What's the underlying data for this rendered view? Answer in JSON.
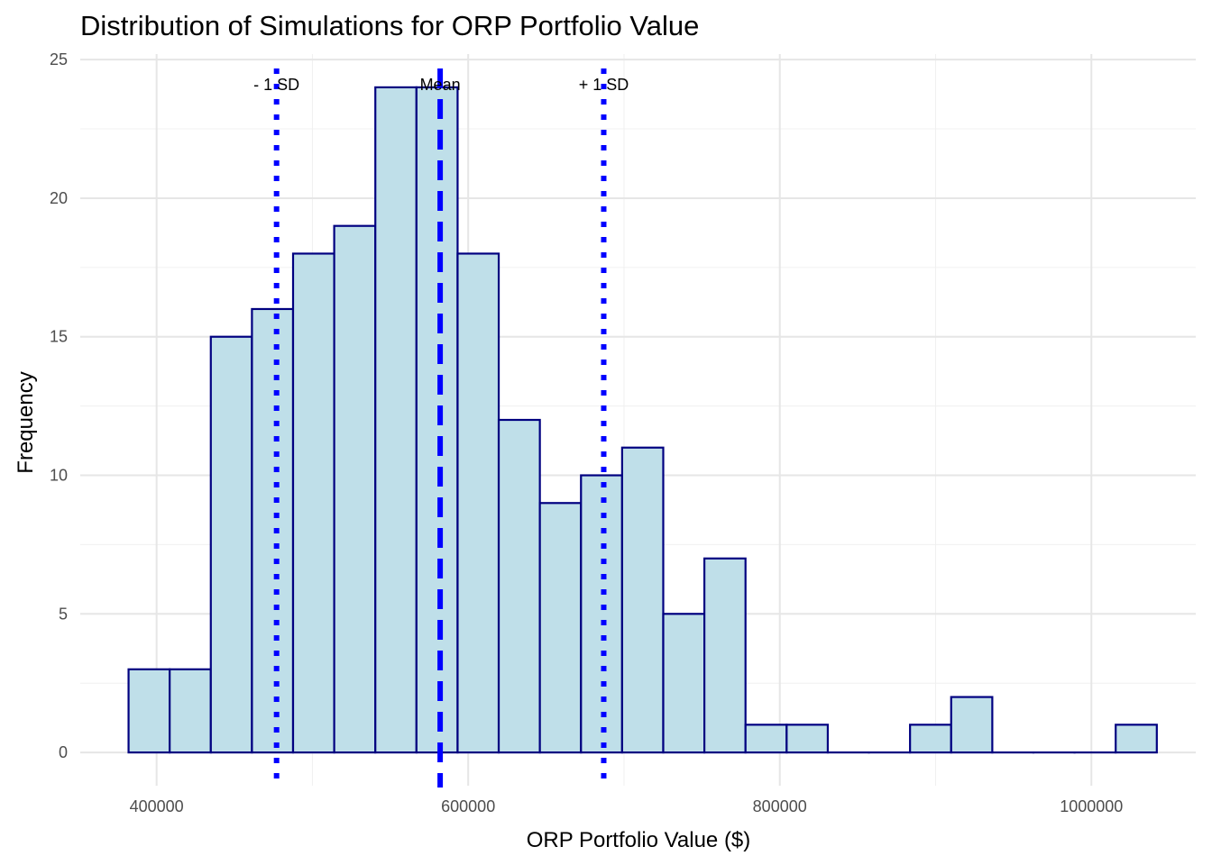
{
  "chart_data": {
    "type": "bar",
    "title": "Distribution of Simulations for ORP Portfolio Value",
    "xlabel": "ORP Portfolio Value ($)",
    "ylabel": "Frequency",
    "xlim": [
      351000,
      1067000
    ],
    "ylim": [
      -1.2,
      25.2
    ],
    "x_ticks": [
      400000,
      600000,
      800000,
      1000000
    ],
    "x_tick_labels": [
      "400000",
      "600000",
      "800000",
      "1000000"
    ],
    "y_ticks": [
      0,
      5,
      10,
      15,
      20,
      25
    ],
    "y_tick_labels": [
      "0",
      "5",
      "10",
      "15",
      "20",
      "25"
    ],
    "grid": true,
    "bin_width": 26400,
    "bins": [
      {
        "start": 382000,
        "end": 408400,
        "count": 3
      },
      {
        "start": 408400,
        "end": 434800,
        "count": 3
      },
      {
        "start": 434800,
        "end": 461200,
        "count": 15
      },
      {
        "start": 461200,
        "end": 487600,
        "count": 16
      },
      {
        "start": 487600,
        "end": 514000,
        "count": 18
      },
      {
        "start": 514000,
        "end": 540400,
        "count": 19
      },
      {
        "start": 540400,
        "end": 566800,
        "count": 24
      },
      {
        "start": 566800,
        "end": 593200,
        "count": 24
      },
      {
        "start": 593200,
        "end": 619600,
        "count": 18
      },
      {
        "start": 619600,
        "end": 646000,
        "count": 12
      },
      {
        "start": 646000,
        "end": 672400,
        "count": 9
      },
      {
        "start": 672400,
        "end": 698800,
        "count": 10
      },
      {
        "start": 698800,
        "end": 725200,
        "count": 11
      },
      {
        "start": 725200,
        "end": 751600,
        "count": 5
      },
      {
        "start": 751600,
        "end": 778000,
        "count": 7
      },
      {
        "start": 778000,
        "end": 804400,
        "count": 1
      },
      {
        "start": 804400,
        "end": 830800,
        "count": 1
      },
      {
        "start": 830800,
        "end": 857200,
        "count": 0
      },
      {
        "start": 857200,
        "end": 883600,
        "count": 0
      },
      {
        "start": 883600,
        "end": 910000,
        "count": 1
      },
      {
        "start": 910000,
        "end": 936400,
        "count": 2
      },
      {
        "start": 936400,
        "end": 962800,
        "count": 0
      },
      {
        "start": 962800,
        "end": 989200,
        "count": 0
      },
      {
        "start": 989200,
        "end": 1015600,
        "count": 0
      },
      {
        "start": 1015600,
        "end": 1042000,
        "count": 1
      }
    ],
    "bar_fill": "#bfdfe9",
    "bar_outline": "#000080",
    "reference_lines": [
      {
        "label": "- 1 SD",
        "x": 477000,
        "style": "dotted",
        "color": "#0000ff"
      },
      {
        "label": "Mean",
        "x": 582000,
        "style": "dashed",
        "color": "#0000ff"
      },
      {
        "label": "+ 1 SD",
        "x": 687000,
        "style": "dotted",
        "color": "#0000ff"
      }
    ]
  }
}
